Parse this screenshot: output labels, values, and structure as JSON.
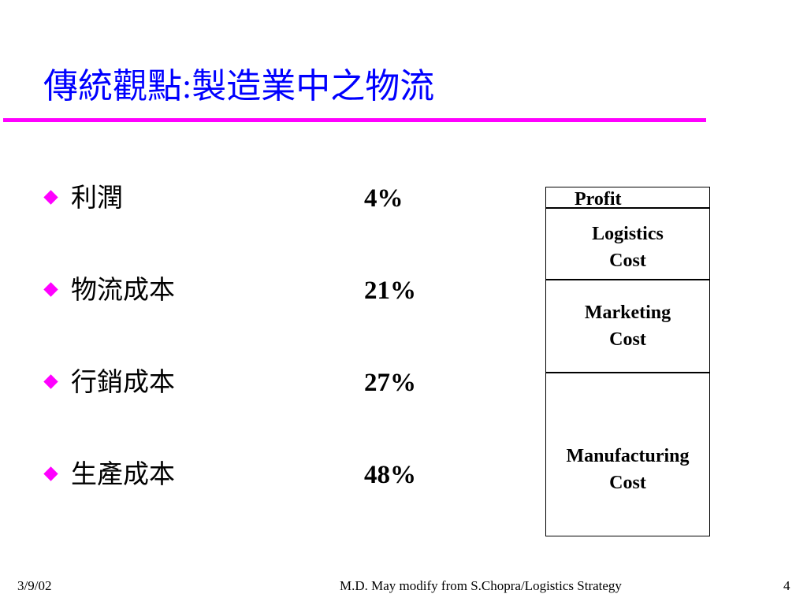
{
  "title": "傳統觀點:製造業中之物流",
  "bullets": [
    {
      "label": "利潤",
      "value": "4%"
    },
    {
      "label": "物流成本",
      "value": "21%"
    },
    {
      "label": "行銷成本",
      "value": "27%"
    },
    {
      "label": "生產成本",
      "value": "48%"
    }
  ],
  "cost_stack": {
    "profit": "Profit",
    "logistics": {
      "line1": "Logistics",
      "line2": "Cost"
    },
    "marketing": {
      "line1": "Marketing",
      "line2": "Cost"
    },
    "manufacturing": {
      "line1": "Manufacturing",
      "line2": "Cost"
    }
  },
  "footer": {
    "date": "3/9/02",
    "credit": "M.D. May modify from S.Chopra/Logistics Strategy",
    "page": "4"
  },
  "colors": {
    "title": "#0000ff",
    "accent": "#ff00ff"
  },
  "icons": {
    "bullet": "diamond-bullet-icon"
  }
}
